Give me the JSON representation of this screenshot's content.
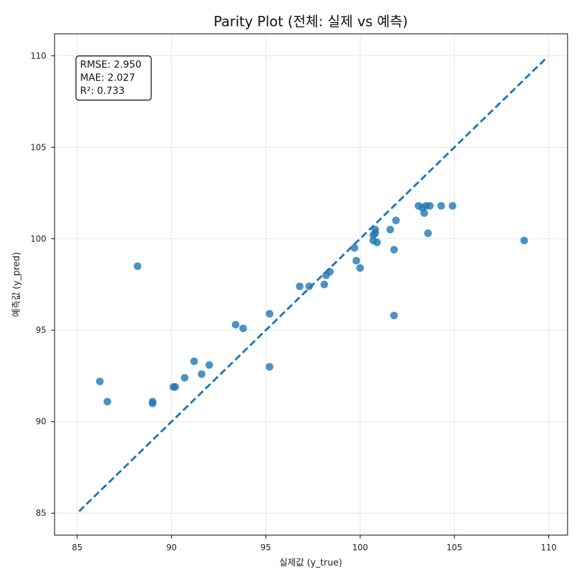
{
  "chart_data": {
    "type": "scatter",
    "title": "Parity Plot (전체: 실제 vs 예측)",
    "xlabel": "실제값 (y_true)",
    "ylabel": "예측값 (y_pred)",
    "xlim": [
      83.8,
      111.0
    ],
    "ylim": [
      83.8,
      111.2
    ],
    "xticks": [
      85,
      90,
      95,
      100,
      105,
      110
    ],
    "yticks": [
      85,
      90,
      95,
      100,
      105,
      110
    ],
    "grid": true,
    "reference_line": {
      "from": [
        85.1,
        85.1
      ],
      "to": [
        109.9,
        109.9
      ],
      "style": "dashed",
      "color": "#1f77b4"
    },
    "point_color": "#1f77b4",
    "stats": [
      "RMSE: 2.950",
      "MAE: 2.027",
      "R²: 0.733"
    ],
    "points": [
      [
        86.2,
        92.2
      ],
      [
        86.6,
        91.1
      ],
      [
        88.2,
        98.5
      ],
      [
        89.0,
        91.1
      ],
      [
        89.0,
        91.0
      ],
      [
        90.1,
        91.9
      ],
      [
        90.2,
        91.9
      ],
      [
        90.7,
        92.4
      ],
      [
        91.2,
        93.3
      ],
      [
        91.6,
        92.6
      ],
      [
        92.0,
        93.1
      ],
      [
        93.4,
        95.3
      ],
      [
        93.8,
        95.1
      ],
      [
        95.2,
        95.9
      ],
      [
        95.2,
        93.0
      ],
      [
        96.8,
        97.4
      ],
      [
        97.3,
        97.4
      ],
      [
        98.1,
        97.5
      ],
      [
        98.2,
        98.0
      ],
      [
        98.4,
        98.2
      ],
      [
        99.7,
        99.5
      ],
      [
        99.8,
        98.8
      ],
      [
        100.0,
        98.4
      ],
      [
        100.7,
        100.2
      ],
      [
        100.7,
        99.9
      ],
      [
        100.8,
        100.3
      ],
      [
        100.8,
        100.5
      ],
      [
        100.9,
        99.8
      ],
      [
        101.6,
        100.5
      ],
      [
        101.8,
        99.4
      ],
      [
        101.8,
        95.8
      ],
      [
        101.9,
        101.0
      ],
      [
        103.1,
        101.8
      ],
      [
        103.3,
        101.7
      ],
      [
        103.4,
        101.4
      ],
      [
        103.5,
        101.8
      ],
      [
        103.6,
        100.3
      ],
      [
        103.7,
        101.8
      ],
      [
        104.3,
        101.8
      ],
      [
        104.9,
        101.8
      ],
      [
        108.7,
        99.9
      ]
    ]
  }
}
